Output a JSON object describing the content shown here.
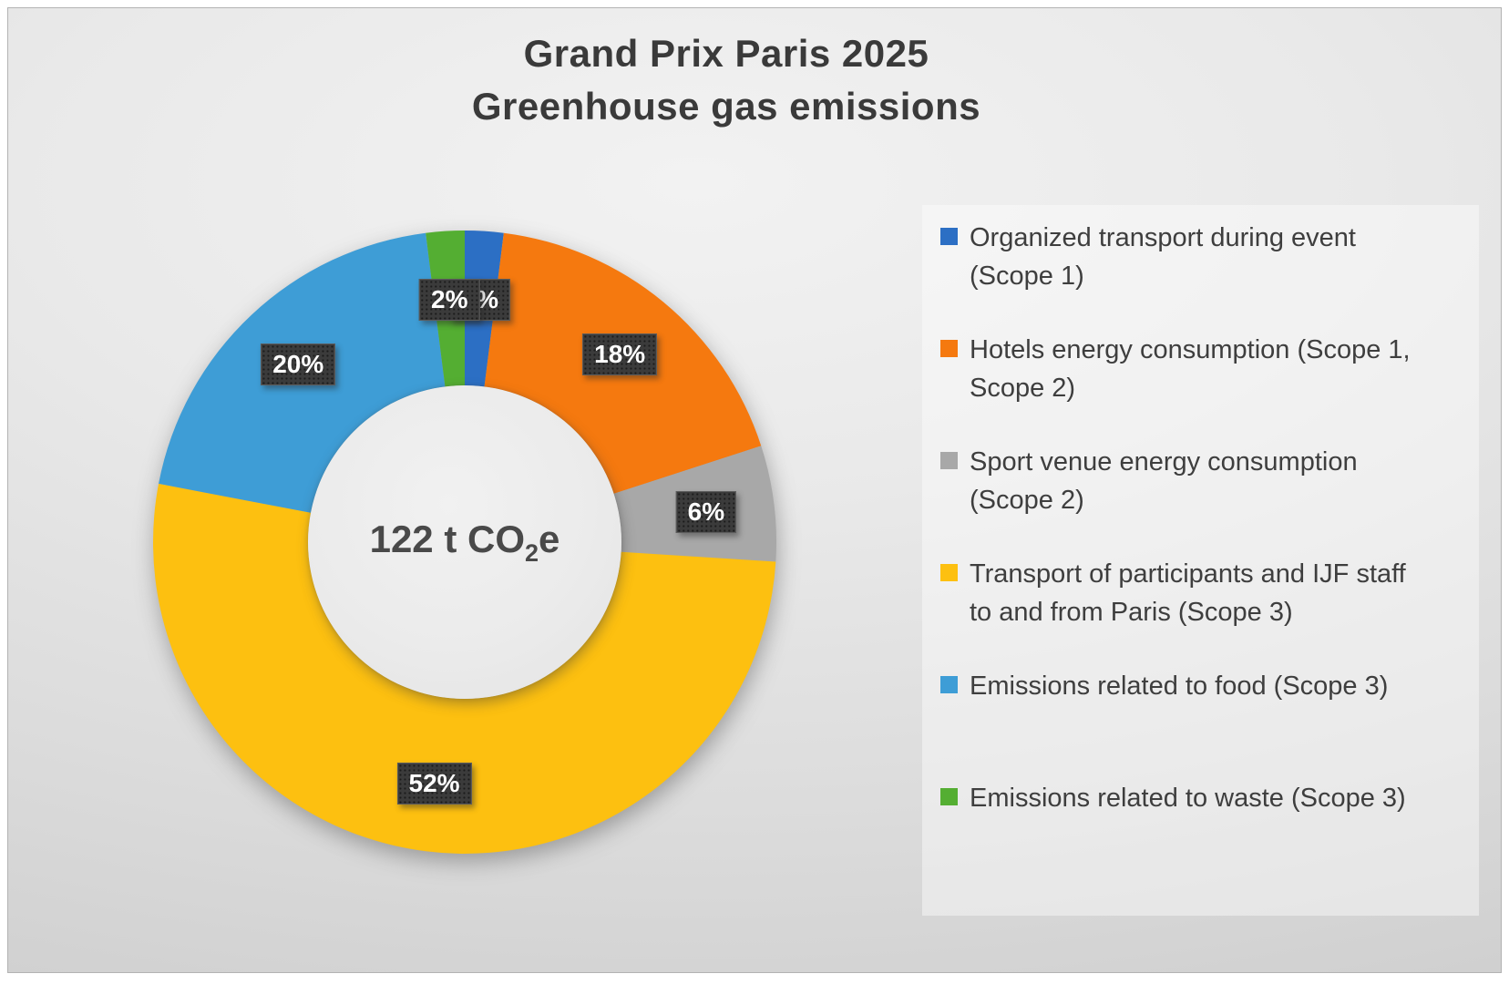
{
  "title": {
    "line1": "Grand Prix Paris 2025",
    "line2": "Greenhouse gas emissions"
  },
  "chart_data": {
    "type": "pie",
    "variant": "donut",
    "title": "Grand Prix Paris 2025 Greenhouse gas emissions",
    "direction": "clockwise",
    "start_angle_deg": 0,
    "hole_ratio": 0.5,
    "legend_position": "right",
    "center_label": {
      "text": "122 t CO2e",
      "prefix": "122 t CO",
      "subscript": "2",
      "suffix": "e"
    },
    "series": [
      {
        "label": "Organized transport during event\n(Scope 1)",
        "value": 2,
        "data_label": "2%",
        "color": "#2c6fc4"
      },
      {
        "label": "Hotels energy consumption (Scope 1,\nScope 2)",
        "value": 18,
        "data_label": "18%",
        "color": "#f5790f"
      },
      {
        "label": "Sport venue energy consumption\n(Scope 2)",
        "value": 6,
        "data_label": "6%",
        "color": "#a8a8a8"
      },
      {
        "label": "Transport of participants and IJF staff\nto and from Paris (Scope 3)",
        "value": 52,
        "data_label": "52%",
        "color": "#fdc010"
      },
      {
        "label": "Emissions related to food (Scope 3)",
        "value": 20,
        "data_label": "20%",
        "color": "#3e9dd6"
      },
      {
        "label": "Emissions related to waste (Scope 3)",
        "value": 2,
        "data_label": "2%",
        "color": "#54ae32"
      }
    ],
    "values_unit": "percent"
  },
  "colors": {
    "title_text": "#3a3a3a",
    "legend_text": "#3e3e3e",
    "label_box_bg": "#3b3b3b",
    "label_box_text": "#ffffff"
  }
}
